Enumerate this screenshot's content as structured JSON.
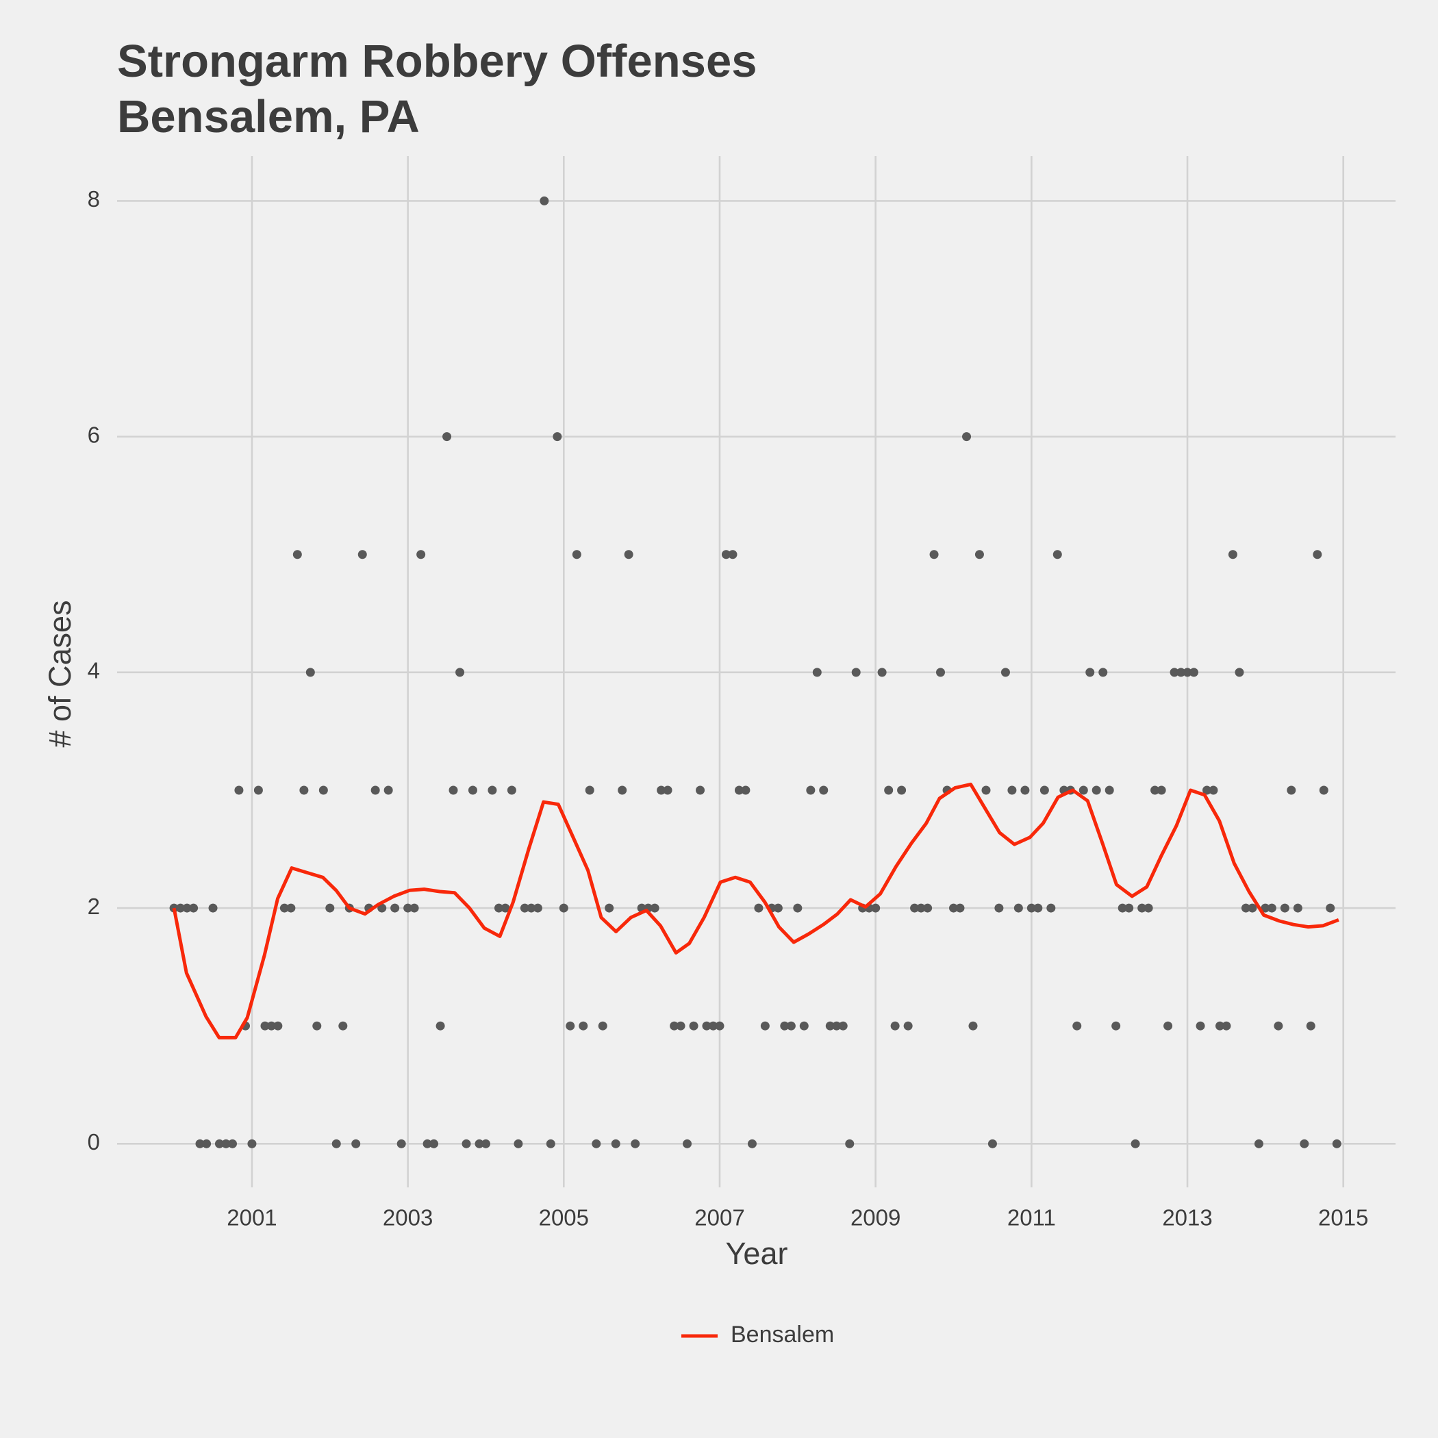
{
  "chart_data": {
    "type": "scatter",
    "title": [
      "Strongarm Robbery Offenses",
      "Bensalem, PA"
    ],
    "x_label": "Year",
    "y_label": "# of Cases",
    "xlim": [
      1999.27,
      2015.67
    ],
    "ylim": [
      -0.37,
      8.38
    ],
    "xticks": [
      2001,
      2003,
      2005,
      2007,
      2009,
      2011,
      2013,
      2015
    ],
    "yticks": [
      0,
      2,
      4,
      6,
      8
    ],
    "grid": true,
    "legend": "bottom",
    "points": {
      "color": "#595959",
      "x": [
        2000,
        2000.083,
        2000.167,
        2000.25,
        2000.333,
        2000.417,
        2000.5,
        2000.583,
        2000.667,
        2000.75,
        2000.833,
        2000.917,
        2001,
        2001.083,
        2001.167,
        2001.25,
        2001.333,
        2001.417,
        2001.5,
        2001.583,
        2001.667,
        2001.75,
        2001.833,
        2001.917,
        2002,
        2002.083,
        2002.167,
        2002.25,
        2002.333,
        2002.417,
        2002.5,
        2002.583,
        2002.667,
        2002.75,
        2002.833,
        2002.917,
        2003,
        2003.083,
        2003.167,
        2003.25,
        2003.333,
        2003.417,
        2003.5,
        2003.583,
        2003.667,
        2003.75,
        2003.833,
        2003.917,
        2004,
        2004.083,
        2004.167,
        2004.25,
        2004.333,
        2004.417,
        2004.5,
        2004.583,
        2004.667,
        2004.75,
        2004.833,
        2004.917,
        2005,
        2005.083,
        2005.167,
        2005.25,
        2005.333,
        2005.417,
        2005.5,
        2005.583,
        2005.667,
        2005.75,
        2005.833,
        2005.917,
        2006,
        2006.083,
        2006.167,
        2006.25,
        2006.333,
        2006.417,
        2006.5,
        2006.583,
        2006.667,
        2006.75,
        2006.833,
        2006.917,
        2007,
        2007.083,
        2007.167,
        2007.25,
        2007.333,
        2007.417,
        2007.5,
        2007.583,
        2007.667,
        2007.75,
        2007.833,
        2007.917,
        2008,
        2008.083,
        2008.167,
        2008.25,
        2008.333,
        2008.417,
        2008.5,
        2008.583,
        2008.667,
        2008.75,
        2008.833,
        2008.917,
        2009,
        2009.083,
        2009.167,
        2009.25,
        2009.333,
        2009.417,
        2009.5,
        2009.583,
        2009.667,
        2009.75,
        2009.833,
        2009.917,
        2010,
        2010.083,
        2010.167,
        2010.25,
        2010.333,
        2010.417,
        2010.5,
        2010.583,
        2010.667,
        2010.75,
        2010.833,
        2010.917,
        2011,
        2011.083,
        2011.167,
        2011.25,
        2011.333,
        2011.417,
        2011.5,
        2011.583,
        2011.667,
        2011.75,
        2011.833,
        2011.917,
        2012,
        2012.083,
        2012.167,
        2012.25,
        2012.333,
        2012.417,
        2012.5,
        2012.583,
        2012.667,
        2012.75,
        2012.833,
        2012.917,
        2013,
        2013.083,
        2013.167,
        2013.25,
        2013.333,
        2013.417,
        2013.5,
        2013.583,
        2013.667,
        2013.75,
        2013.833,
        2013.917,
        2014,
        2014.083,
        2014.167,
        2014.25,
        2014.333,
        2014.417,
        2014.5,
        2014.583,
        2014.667,
        2014.75,
        2014.833,
        2014.917
      ],
      "values": [
        2,
        2,
        2,
        2,
        0,
        0,
        2,
        0,
        0,
        0,
        3,
        1,
        0,
        3,
        1,
        1,
        1,
        2,
        2,
        5,
        3,
        4,
        1,
        3,
        2,
        0,
        1,
        2,
        0,
        5,
        2,
        3,
        2,
        3,
        2,
        0,
        2,
        2,
        5,
        0,
        0,
        1,
        6,
        3,
        4,
        0,
        3,
        0,
        0,
        3,
        2,
        2,
        3,
        0,
        2,
        2,
        2,
        8,
        0,
        6,
        2,
        1,
        5,
        1,
        3,
        0,
        1,
        2,
        0,
        3,
        5,
        0,
        2,
        2,
        2,
        3,
        3,
        1,
        1,
        0,
        1,
        3,
        1,
        1,
        1,
        5,
        5,
        3,
        3,
        0,
        2,
        1,
        2,
        2,
        1,
        1,
        2,
        1,
        3,
        4,
        3,
        1,
        1,
        1,
        0,
        4,
        2,
        2,
        2,
        4,
        3,
        1,
        3,
        1,
        2,
        2,
        2,
        5,
        4,
        3,
        2,
        2,
        6,
        1,
        5,
        3,
        0,
        2,
        4,
        3,
        2,
        3,
        2,
        2,
        3,
        2,
        5,
        3,
        3,
        1,
        3,
        4,
        3,
        4,
        3,
        1,
        2,
        2,
        0,
        2,
        2,
        3,
        3,
        1,
        4,
        4,
        4,
        4,
        1,
        3,
        3,
        1,
        1,
        5,
        4,
        2,
        2,
        0,
        2,
        2,
        1,
        2,
        3,
        2,
        0,
        1,
        5,
        3,
        2,
        0
      ]
    },
    "series": [
      {
        "name": "Bensalem",
        "color": "#f8280a",
        "x": [
          2000,
          2000.16,
          2000.41,
          2000.58,
          2000.79,
          2000.94,
          2001.16,
          2001.33,
          2001.51,
          2001.71,
          2001.91,
          2002.08,
          2002.25,
          2002.45,
          2002.62,
          2002.82,
          2003.02,
          2003.21,
          2003.41,
          2003.6,
          2003.79,
          2003.98,
          2004.18,
          2004.35,
          2004.55,
          2004.74,
          2004.93,
          2005.12,
          2005.31,
          2005.48,
          2005.67,
          2005.86,
          2006.06,
          2006.24,
          2006.44,
          2006.61,
          2006.8,
          2007.01,
          2007.2,
          2007.39,
          2007.58,
          2007.76,
          2007.95,
          2008.14,
          2008.33,
          2008.51,
          2008.68,
          2008.87,
          2009.06,
          2009.26,
          2009.46,
          2009.65,
          2009.82,
          2010.02,
          2010.22,
          2010.4,
          2010.59,
          2010.78,
          2010.98,
          2011.15,
          2011.34,
          2011.53,
          2011.72,
          2011.91,
          2012.09,
          2012.29,
          2012.48,
          2012.67,
          2012.86,
          2013.04,
          2013.22,
          2013.41,
          2013.6,
          2013.79,
          2013.98,
          2014.18,
          2014.36,
          2014.55,
          2014.74,
          2014.94
        ],
        "values": [
          2.0,
          1.45,
          1.08,
          0.9,
          0.9,
          1.07,
          1.6,
          2.08,
          2.34,
          2.3,
          2.26,
          2.15,
          2.0,
          1.95,
          2.03,
          2.1,
          2.15,
          2.16,
          2.14,
          2.13,
          2.0,
          1.83,
          1.76,
          2.05,
          2.5,
          2.9,
          2.88,
          2.6,
          2.32,
          1.92,
          1.8,
          1.92,
          1.98,
          1.85,
          1.62,
          1.7,
          1.92,
          2.22,
          2.26,
          2.22,
          2.05,
          1.84,
          1.71,
          1.78,
          1.86,
          1.95,
          2.07,
          2.01,
          2.12,
          2.35,
          2.55,
          2.72,
          2.93,
          3.02,
          3.05,
          2.85,
          2.64,
          2.54,
          2.6,
          2.72,
          2.94,
          3.0,
          2.91,
          2.55,
          2.2,
          2.1,
          2.18,
          2.45,
          2.7,
          3.0,
          2.96,
          2.74,
          2.38,
          2.14,
          1.94,
          1.89,
          1.86,
          1.84,
          1.85,
          1.9
        ]
      }
    ]
  }
}
